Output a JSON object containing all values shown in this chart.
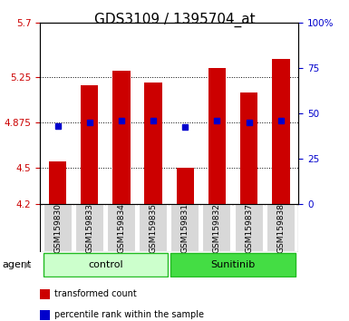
{
  "title": "GDS3109 / 1395704_at",
  "samples": [
    "GSM159830",
    "GSM159833",
    "GSM159834",
    "GSM159835",
    "GSM159831",
    "GSM159832",
    "GSM159837",
    "GSM159838"
  ],
  "bar_values": [
    4.55,
    5.18,
    5.3,
    5.2,
    4.5,
    5.32,
    5.12,
    5.4
  ],
  "bar_bottom": 4.2,
  "percentile_values": [
    4.84,
    4.875,
    4.885,
    4.885,
    4.835,
    4.89,
    4.875,
    4.885
  ],
  "ylim_left": [
    4.2,
    5.7
  ],
  "ylim_right": [
    0,
    100
  ],
  "yticks_left": [
    4.2,
    4.5,
    4.875,
    5.25,
    5.7
  ],
  "ytick_labels_left": [
    "4.2",
    "4.5",
    "4.875",
    "5.25",
    "5.7"
  ],
  "yticks_right": [
    0,
    25,
    50,
    75,
    100
  ],
  "ytick_labels_right": [
    "0",
    "25",
    "50",
    "75",
    "100%"
  ],
  "hlines": [
    4.5,
    4.875,
    5.25
  ],
  "bar_color": "#CC0000",
  "dot_color": "#0000CC",
  "groups": [
    {
      "label": "control",
      "indices": [
        0,
        1,
        2,
        3
      ],
      "color": "#ccffcc"
    },
    {
      "label": "Sunitinib",
      "indices": [
        4,
        5,
        6,
        7
      ],
      "color": "#44dd44"
    }
  ],
  "group_separator": 3.5,
  "legend_items": [
    {
      "color": "#CC0000",
      "label": "transformed count"
    },
    {
      "color": "#0000CC",
      "label": "percentile rank within the sample"
    }
  ],
  "title_fontsize": 11,
  "axis_color_left": "#CC0000",
  "axis_color_right": "#0000CC"
}
